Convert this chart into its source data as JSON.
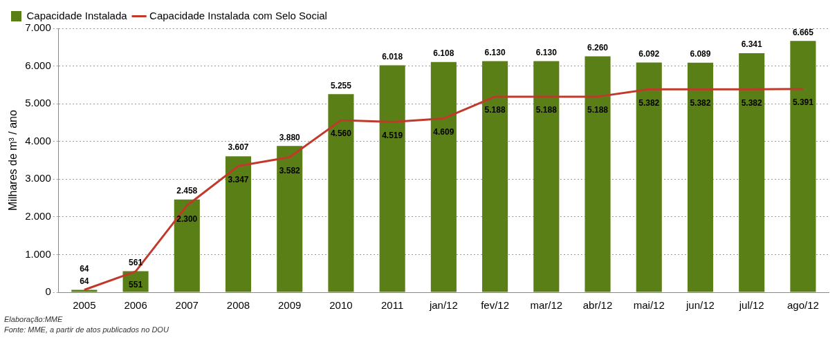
{
  "chart_data": {
    "type": "bar",
    "ylabel": "Milhares de m³ / ano",
    "categories": [
      "2005",
      "2006",
      "2007",
      "2008",
      "2009",
      "2010",
      "2011",
      "jan/12",
      "fev/12",
      "mar/12",
      "abr/12",
      "mai/12",
      "jun/12",
      "jul/12",
      "ago/12"
    ],
    "series": [
      {
        "name": "Capacidade Instalada",
        "color": "#5b7f17",
        "values": [
          64,
          561,
          2458,
          3607,
          3880,
          5255,
          6018,
          6108,
          6130,
          6130,
          6260,
          6092,
          6089,
          6341,
          6665
        ],
        "value_labels": [
          "64",
          "561",
          "2.458",
          "3.607",
          "3.880",
          "5.255",
          "6.018",
          "6.108",
          "6.130",
          "6.130",
          "6.260",
          "6.092",
          "6.089",
          "6.341",
          "6.665"
        ]
      },
      {
        "name": "Capacidade Instalada com Selo Social",
        "type": "line",
        "color": "#c0392b",
        "values": [
          64,
          551,
          2300,
          3347,
          3582,
          4560,
          4519,
          4609,
          5188,
          5188,
          5188,
          5382,
          5382,
          5382,
          5391
        ],
        "value_labels": [
          "64",
          "551",
          "2.300",
          "3.347",
          "3.582",
          "4.560",
          "4.519",
          "4.609",
          "5.188",
          "5.188",
          "5.188",
          "5.382",
          "5.382",
          "5.382",
          "5.391"
        ]
      }
    ],
    "ylim": [
      0,
      7000
    ],
    "yticks": [
      {
        "value": 0,
        "label": "0"
      },
      {
        "value": 1000,
        "label": "1.000"
      },
      {
        "value": 2000,
        "label": "2.000"
      },
      {
        "value": 3000,
        "label": "3.000"
      },
      {
        "value": 4000,
        "label": "4.000"
      },
      {
        "value": 5000,
        "label": "5.000"
      },
      {
        "value": 6000,
        "label": "6.000"
      },
      {
        "value": 7000,
        "label": "7.000"
      }
    ],
    "grid": "y",
    "legend": "top left",
    "marker": "none",
    "line_style": "solid",
    "annotations": [
      "Elaboração:MME",
      "Fonte: MME, a partir de atos publicados no DOU"
    ]
  }
}
